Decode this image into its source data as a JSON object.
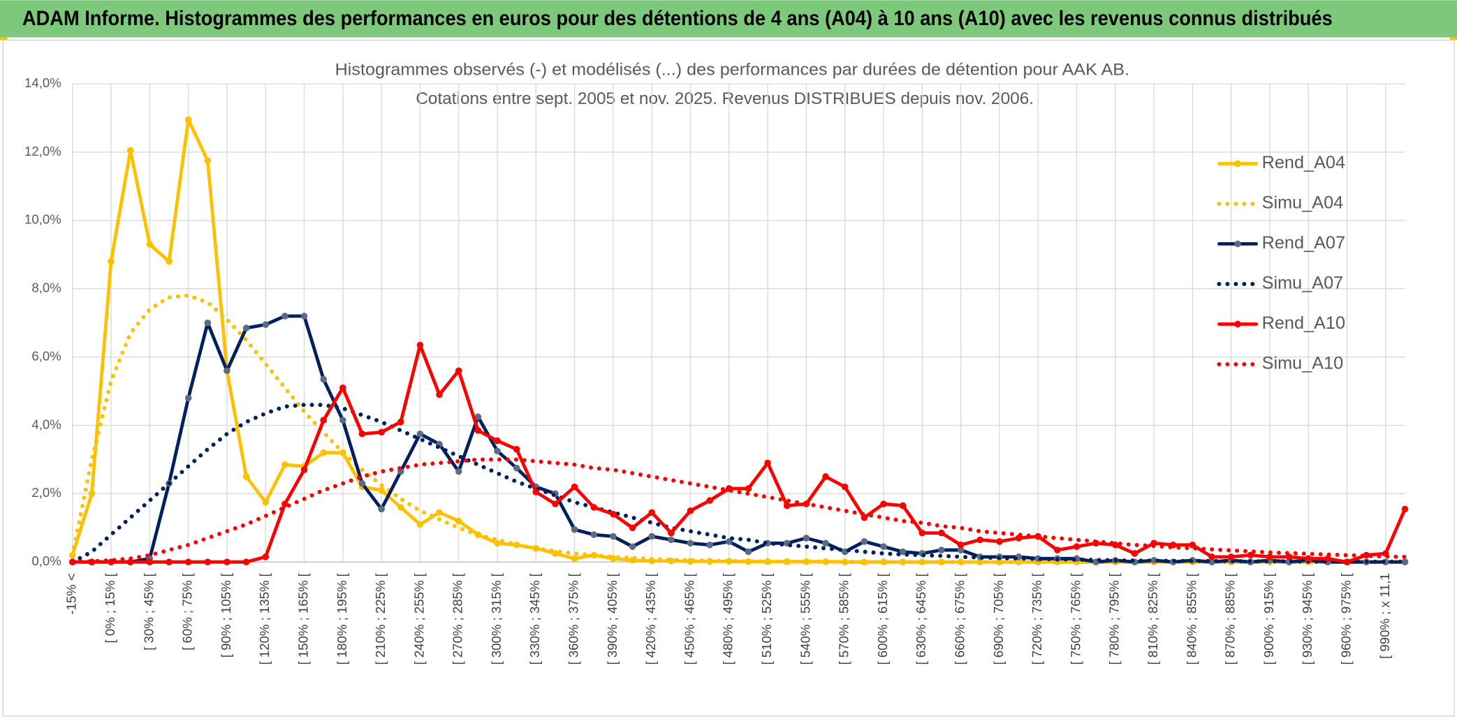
{
  "chart_data": {
    "type": "line",
    "header": "ADAM Informe. Histogrammes des performances en euros pour des détentions de 4 ans (A04) à 10 ans (A10) avec les revenus connus distribués",
    "title": "Histogrammes observés (-) et modélisés (...) des performances par durées de détention pour AAK AB.",
    "subtitle": "Cotations entre sept. 2005 et nov. 2025. Revenus DISTRIBUES depuis nov. 2006.",
    "categories": [
      "-15% <",
      null,
      "[ 0% ; 15% [",
      null,
      "[ 30% ; 45% [",
      null,
      "[ 60% ; 75% [",
      null,
      "[ 90% ; 105% [",
      null,
      "[ 120% ; 135% [",
      null,
      "[ 150% ; 165% [",
      null,
      "[ 180% ; 195% [",
      null,
      "[ 210% ; 225% [",
      null,
      "[ 240% ; 255% [",
      null,
      "[ 270% ; 285% [",
      null,
      "[ 300% ; 315% [",
      null,
      "[ 330% ; 345% [",
      null,
      "[ 360% ; 375% [",
      null,
      "[ 390% ; 405% [",
      null,
      "[ 420% ; 435% [",
      null,
      "[ 450% ; 465% [",
      null,
      "[ 480% ; 495% [",
      null,
      "[ 510% ; 525% [",
      null,
      "[ 540% ; 555% [",
      null,
      "[ 570% ; 585% [",
      null,
      "[ 600% ; 615% [",
      null,
      "[ 630% ; 645% [",
      null,
      "[ 660% ; 675% [",
      null,
      "[ 690% ; 705% [",
      null,
      "[ 720% ; 735% [",
      null,
      "[ 750% ; 765% [",
      null,
      "[ 780% ; 795% [",
      null,
      "[ 810% ; 825% [",
      null,
      "[ 840% ; 855% [",
      null,
      "[ 870% ; 885% [",
      null,
      "[ 900% ; 915% [",
      null,
      "[ 930% ; 945% [",
      null,
      "[ 960% ; 975% [",
      null,
      "[ 990% ; x 11,1",
      null
    ],
    "series": [
      {
        "name": "Rend_A04",
        "color": "#FFC000",
        "marker_color": "#FFC000",
        "line_style": "solid",
        "values": [
          0.2,
          2.0,
          8.8,
          12.05,
          9.3,
          8.8,
          12.95,
          11.75,
          5.6,
          2.5,
          1.75,
          2.85,
          2.8,
          3.2,
          3.2,
          2.2,
          2.1,
          1.6,
          1.1,
          1.45,
          1.2,
          0.8,
          0.55,
          0.5,
          0.4,
          0.25,
          0.1,
          0.2,
          0.1,
          0.05,
          0.03,
          0.03,
          0.02,
          0.02,
          0.02,
          0.01,
          0.01,
          0.01,
          0.01,
          0.01,
          0,
          0,
          0,
          0,
          0,
          0,
          0,
          0,
          0,
          0,
          0,
          0,
          0,
          0,
          0,
          0,
          0,
          0,
          0,
          0,
          0,
          0,
          0,
          0,
          0,
          0,
          0,
          0,
          0,
          0
        ]
      },
      {
        "name": "Simu_A04",
        "color": "#FFC000",
        "line_style": "dotted",
        "values": [
          0.2,
          3.0,
          5.3,
          6.7,
          7.4,
          7.75,
          7.8,
          7.6,
          7.1,
          6.5,
          5.8,
          5.1,
          4.4,
          3.8,
          3.2,
          2.7,
          2.25,
          1.85,
          1.5,
          1.25,
          1.0,
          0.8,
          0.65,
          0.5,
          0.4,
          0.32,
          0.25,
          0.2,
          0.15,
          0.12,
          0.09,
          0.07,
          0.05,
          0.04,
          0.03,
          0.02,
          0.02,
          0.01,
          0.01,
          0.01,
          0.01,
          0,
          0,
          0,
          0,
          0,
          0,
          0,
          0,
          0,
          0,
          0,
          0,
          0,
          0,
          0,
          0,
          0,
          0,
          0,
          0,
          0,
          0,
          0,
          0,
          0,
          0,
          0,
          0,
          0
        ]
      },
      {
        "name": "Rend_A07",
        "color": "#002060",
        "marker_color": "#5B6B82",
        "line_style": "solid",
        "values": [
          0,
          0,
          0,
          0,
          0.1,
          2.3,
          4.8,
          7.0,
          5.6,
          6.85,
          6.95,
          7.2,
          7.2,
          5.35,
          4.15,
          2.3,
          1.55,
          2.65,
          3.75,
          3.45,
          2.65,
          4.25,
          3.25,
          2.75,
          2.2,
          2.0,
          0.95,
          0.8,
          0.75,
          0.45,
          0.75,
          0.65,
          0.55,
          0.5,
          0.6,
          0.3,
          0.55,
          0.55,
          0.7,
          0.55,
          0.3,
          0.6,
          0.45,
          0.3,
          0.25,
          0.35,
          0.35,
          0.15,
          0.15,
          0.15,
          0.1,
          0.1,
          0.1,
          0,
          0.05,
          0,
          0.05,
          0,
          0.05,
          0,
          0.05,
          0,
          0.05,
          0,
          0.05,
          0,
          0,
          0,
          0,
          0
        ]
      },
      {
        "name": "Simu_A07",
        "color": "#002060",
        "line_style": "dotted",
        "values": [
          0,
          0.3,
          0.8,
          1.3,
          1.8,
          2.3,
          2.8,
          3.3,
          3.75,
          4.1,
          4.35,
          4.55,
          4.6,
          4.6,
          4.5,
          4.3,
          4.1,
          3.85,
          3.6,
          3.35,
          3.1,
          2.85,
          2.6,
          2.35,
          2.15,
          1.95,
          1.75,
          1.6,
          1.45,
          1.3,
          1.15,
          1.0,
          0.9,
          0.8,
          0.7,
          0.65,
          0.55,
          0.5,
          0.45,
          0.4,
          0.35,
          0.3,
          0.25,
          0.22,
          0.2,
          0.18,
          0.15,
          0.13,
          0.12,
          0.1,
          0.09,
          0.08,
          0.07,
          0.06,
          0.05,
          0.04,
          0.04,
          0.03,
          0.03,
          0.03,
          0.02,
          0.02,
          0.02,
          0.02,
          0.01,
          0.01,
          0.01,
          0.01,
          0.01,
          0.01
        ]
      },
      {
        "name": "Rend_A10",
        "color": "#FF0000",
        "marker_color": "#FF0000",
        "line_style": "solid",
        "values": [
          0,
          0,
          0,
          0,
          0,
          0,
          0,
          0,
          0,
          0,
          0.15,
          1.7,
          2.7,
          4.15,
          5.1,
          3.75,
          3.8,
          4.1,
          6.35,
          4.9,
          5.6,
          3.85,
          3.55,
          3.3,
          2.05,
          1.7,
          2.2,
          1.6,
          1.4,
          1.0,
          1.45,
          0.85,
          1.5,
          1.8,
          2.15,
          2.15,
          2.9,
          1.65,
          1.7,
          2.5,
          2.2,
          1.3,
          1.7,
          1.65,
          0.85,
          0.85,
          0.5,
          0.65,
          0.6,
          0.7,
          0.75,
          0.35,
          0.45,
          0.55,
          0.5,
          0.25,
          0.55,
          0.5,
          0.5,
          0.15,
          0.15,
          0.2,
          0.15,
          0.15,
          0.1,
          0.1,
          0,
          0.2,
          0.25,
          1.55
        ]
      },
      {
        "name": "Simu_A10",
        "color": "#FF0000",
        "line_style": "dotted",
        "values": [
          0,
          0.02,
          0.05,
          0.1,
          0.2,
          0.35,
          0.5,
          0.7,
          0.9,
          1.1,
          1.35,
          1.6,
          1.85,
          2.1,
          2.3,
          2.5,
          2.65,
          2.75,
          2.85,
          2.9,
          2.95,
          3.0,
          3.0,
          3.0,
          2.95,
          2.9,
          2.85,
          2.75,
          2.7,
          2.6,
          2.5,
          2.4,
          2.3,
          2.2,
          2.1,
          2.0,
          1.9,
          1.8,
          1.7,
          1.6,
          1.5,
          1.4,
          1.3,
          1.2,
          1.15,
          1.05,
          1.0,
          0.9,
          0.85,
          0.8,
          0.75,
          0.7,
          0.65,
          0.6,
          0.55,
          0.5,
          0.47,
          0.43,
          0.4,
          0.37,
          0.34,
          0.31,
          0.28,
          0.26,
          0.24,
          0.22,
          0.2,
          0.18,
          0.16,
          0.15
        ]
      }
    ],
    "ylim": [
      0,
      14
    ],
    "yticks": [
      {
        "value": 0,
        "label": "0,0%"
      },
      {
        "value": 2,
        "label": "2,0%"
      },
      {
        "value": 4,
        "label": "4,0%"
      },
      {
        "value": 6,
        "label": "6,0%"
      },
      {
        "value": 8,
        "label": "8,0%"
      },
      {
        "value": 10,
        "label": "10,0%"
      },
      {
        "value": 12,
        "label": "12,0%"
      },
      {
        "value": 14,
        "label": "14,0%"
      }
    ],
    "grid": true,
    "legend": "right"
  }
}
